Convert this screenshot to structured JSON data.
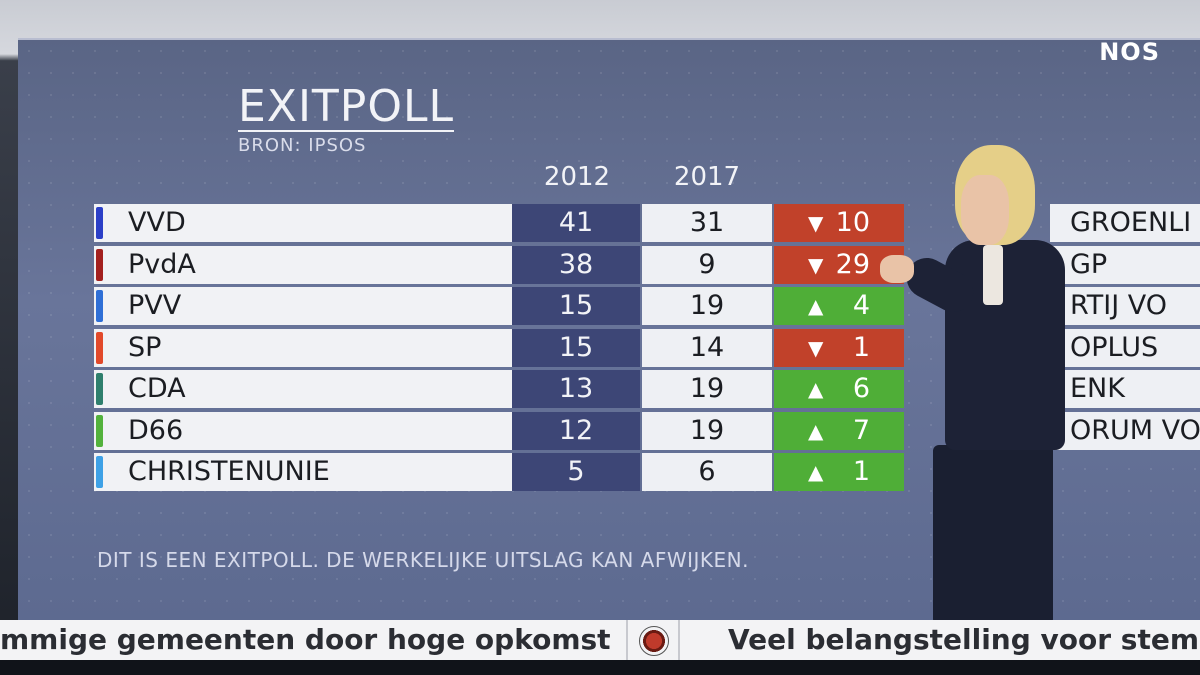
{
  "brand": {
    "logo": "NOS"
  },
  "header": {
    "title": "EXITPOLL",
    "source": "BRON: IPSOS"
  },
  "columns": {
    "year_a": "2012",
    "year_b": "2017"
  },
  "parties": [
    {
      "name": "VVD",
      "color": "#2b3fc7",
      "y2012": "41",
      "y2017": "31",
      "change": "10",
      "direction": "down"
    },
    {
      "name": "PvdA",
      "color": "#a3201e",
      "y2012": "38",
      "y2017": "9",
      "change": "29",
      "direction": "down"
    },
    {
      "name": "PVV",
      "color": "#2f6fd6",
      "y2012": "15",
      "y2017": "19",
      "change": "4",
      "direction": "up"
    },
    {
      "name": "SP",
      "color": "#e2492a",
      "y2012": "15",
      "y2017": "14",
      "change": "1",
      "direction": "down"
    },
    {
      "name": "CDA",
      "color": "#2f7f6d",
      "y2012": "13",
      "y2017": "19",
      "change": "6",
      "direction": "up"
    },
    {
      "name": "D66",
      "color": "#53b23c",
      "y2012": "12",
      "y2017": "19",
      "change": "7",
      "direction": "up"
    },
    {
      "name": "CHRISTENUNIE",
      "color": "#3ea1e6",
      "y2012": "5",
      "y2017": "6",
      "change": "1",
      "direction": "up"
    }
  ],
  "right_column": [
    "GROENLI",
    "GP",
    "RTIJ VO",
    "OPLUS",
    "ENK",
    "ORUM VO"
  ],
  "footnote": "DIT IS EEN EXITPOLL. DE WERKELIJKE UITSLAG KAN AFWIJKEN.",
  "arrows": {
    "down": "▼",
    "up": "▲"
  },
  "ticker": {
    "left": "mmige gemeenten door hoge opkomst",
    "right": "Veel belangstelling voor stembu"
  }
}
